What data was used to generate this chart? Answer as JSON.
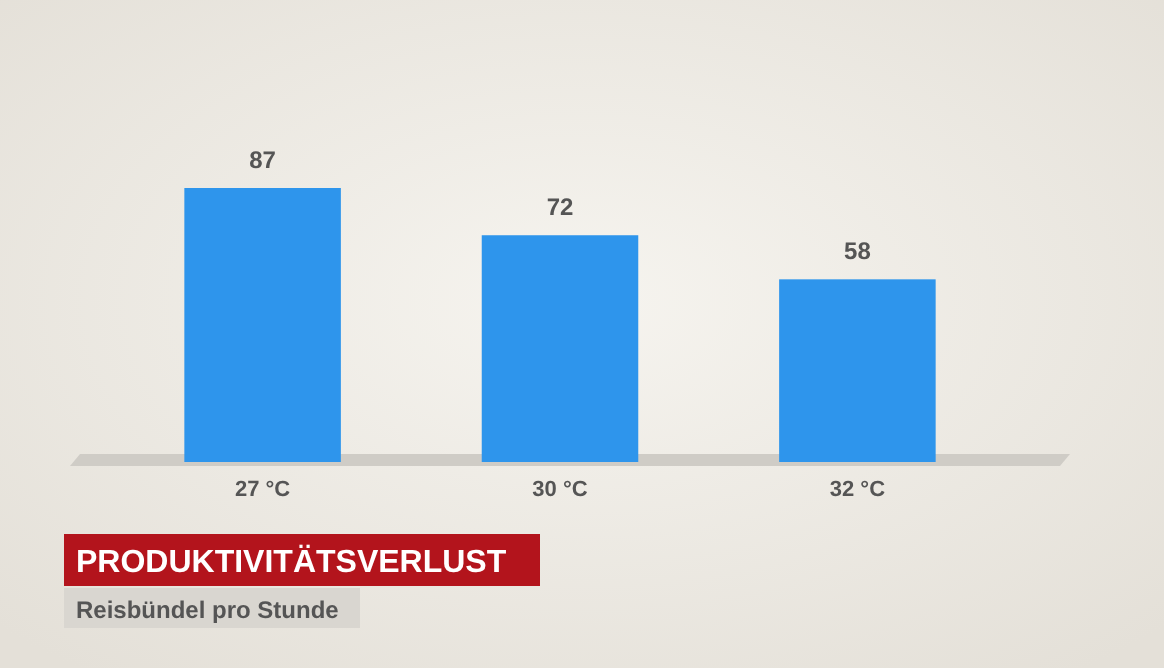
{
  "chart_data": {
    "type": "bar",
    "title": "PRODUKTIVITÄTSVERLUST",
    "subtitle": "Reisbündel pro Stunde",
    "categories": [
      "27 °C",
      "30 °C",
      "32 °C"
    ],
    "values": [
      87,
      72,
      58
    ],
    "color": "#2e95ec",
    "data_labels": true
  }
}
